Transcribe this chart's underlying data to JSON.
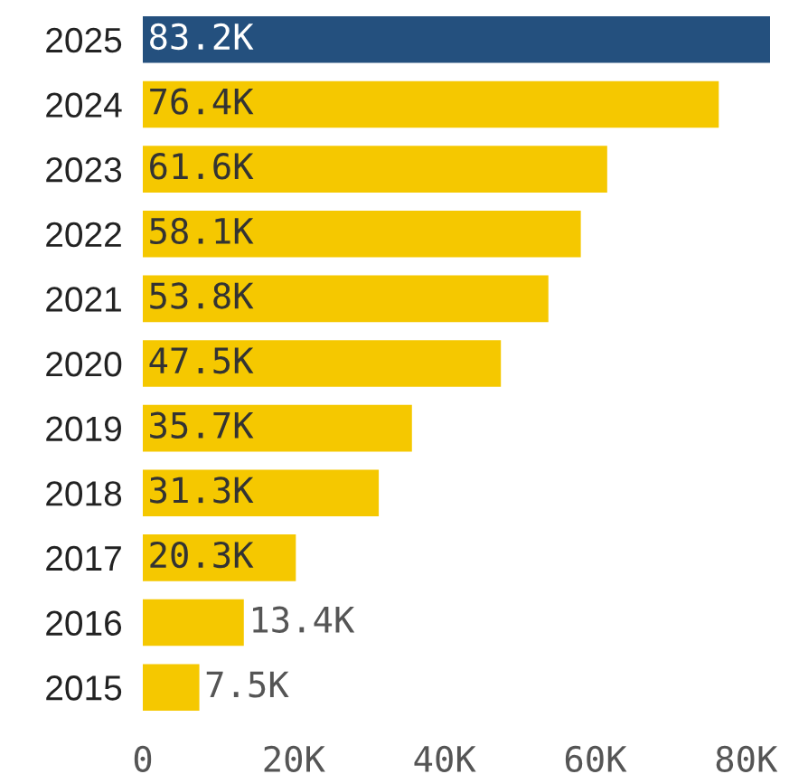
{
  "chart_data": {
    "type": "bar",
    "orientation": "horizontal",
    "categories": [
      "2025",
      "2024",
      "2023",
      "2022",
      "2021",
      "2020",
      "2019",
      "2018",
      "2017",
      "2016",
      "2015"
    ],
    "values": [
      83200,
      76400,
      61600,
      58100,
      53800,
      47500,
      35700,
      31300,
      20300,
      13400,
      7500
    ],
    "value_labels": [
      "83.2K",
      "76.4K",
      "61.6K",
      "58.1K",
      "53.8K",
      "47.5K",
      "35.7K",
      "31.3K",
      "20.3K",
      "13.4K",
      "7.5K"
    ],
    "colors": [
      "#24507e",
      "#f5c800",
      "#f5c800",
      "#f5c800",
      "#f5c800",
      "#f5c800",
      "#f5c800",
      "#f5c800",
      "#f5c800",
      "#f5c800",
      "#f5c800"
    ],
    "xlim": [
      0,
      83200
    ],
    "xticks": [
      0,
      {
        "value": 20000,
        "label": "20K"
      },
      {
        "value": 40000,
        "label": "40K"
      },
      {
        "value": 60000,
        "label": "60K"
      },
      {
        "value": 80000,
        "label": "80K"
      }
    ],
    "grid": false
  }
}
